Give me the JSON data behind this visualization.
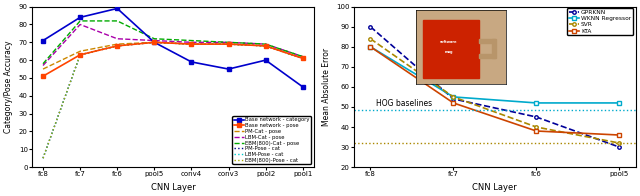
{
  "left_xticklabels": [
    "fc8",
    "fc7",
    "fc6",
    "pool5",
    "conv4",
    "conv3",
    "pool2",
    "pool1"
  ],
  "left_ylim": [
    0,
    90
  ],
  "left_yticks": [
    0,
    10,
    20,
    30,
    40,
    50,
    60,
    70,
    80,
    90
  ],
  "left_ylabel": "Category/Pose Accuracy",
  "left_xlabel": "CNN Layer",
  "base_cat": [
    71,
    84,
    89,
    70,
    59,
    55,
    60,
    45
  ],
  "base_pose": [
    51,
    63,
    68,
    70,
    69,
    69,
    68,
    61
  ],
  "pm_cat_pose": [
    55,
    65,
    69,
    70,
    69,
    69,
    68,
    61
  ],
  "lbm_cat_pose": [
    57,
    80,
    72,
    71,
    70,
    70,
    69,
    62
  ],
  "ebm800_cat_pose": [
    58,
    82,
    82,
    72,
    71,
    70,
    69,
    62
  ],
  "pm_pose_cat": [
    5,
    63,
    68,
    70,
    69,
    69,
    68,
    61
  ],
  "lbm_pose_cat": [
    5,
    63,
    68,
    70,
    69,
    69,
    68,
    61
  ],
  "ebm800_pose_cat": [
    5,
    63,
    68,
    70,
    69,
    69,
    68,
    61
  ],
  "right_xticklabels": [
    "fc8",
    "fc7",
    "fc6",
    "pool5"
  ],
  "right_ylim": [
    20,
    100
  ],
  "right_yticks": [
    20,
    30,
    40,
    50,
    60,
    70,
    80,
    90,
    100
  ],
  "right_ylabel": "Mean Absolute Error",
  "right_xlabel": "CNN Layer",
  "gprknn": [
    90,
    54,
    45,
    30
  ],
  "wknn": [
    80,
    55,
    52,
    52
  ],
  "svr": [
    84,
    55,
    40,
    32
  ],
  "kta": [
    80,
    52,
    38,
    36
  ],
  "hog_line1": 48.5,
  "hog_line2": 32.0,
  "col_base_cat": "#0000CC",
  "col_base_pose": "#FF4400",
  "col_pm_cat_pose": "#CC8800",
  "col_lbm_cat_pose": "#AA00AA",
  "col_ebm_cat_pose": "#00AA00",
  "col_pm_pose_cat": "#000088",
  "col_lbm_pose_cat": "#00CCCC",
  "col_ebm_pose_cat": "#AAAA00",
  "col_gprknn": "#000099",
  "col_wknn": "#00AACC",
  "col_svr": "#AA8800",
  "col_kta": "#CC4400",
  "legend_left_labels": [
    "Base network - category",
    "Base network - pose",
    "PM-Cat - pose",
    "LBM-Cat - pose",
    "EBM(800)-Cat - pose",
    "PM-Pose - cat",
    "LBM-Pose - cat",
    "EBM(800)-Pose - cat"
  ],
  "legend_right_labels": [
    "GPRKNN",
    "WKNN Regressor",
    "SVR",
    "KTA"
  ]
}
